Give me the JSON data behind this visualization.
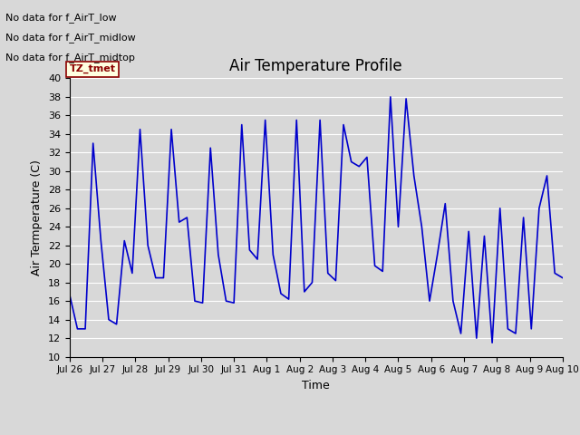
{
  "title": "Air Temperature Profile",
  "xlabel": "Time",
  "ylabel": "Air Termperature (C)",
  "ylim": [
    10,
    40
  ],
  "yticks": [
    10,
    12,
    14,
    16,
    18,
    20,
    22,
    24,
    26,
    28,
    30,
    32,
    34,
    36,
    38,
    40
  ],
  "line_color": "#0000cc",
  "background_color": "#d8d8d8",
  "plot_bg_color": "#d8d8d8",
  "grid_color": "#ffffff",
  "annotations": [
    "No data for f_AirT_low",
    "No data for f_AirT_midlow",
    "No data for f_AirT_midtop"
  ],
  "tz_label": "TZ_tmet",
  "x_labels": [
    "Jul 26",
    "Jul 27",
    "Jul 28",
    "Jul 29",
    "Jul 30",
    "Jul 31",
    "Aug 1",
    "Aug 2",
    "Aug 3",
    "Aug 4",
    "Aug 5",
    "Aug 6",
    "Aug 7",
    "Aug 8",
    "Aug 9",
    "Aug 10"
  ],
  "temp_data": [
    16.7,
    13.0,
    13.0,
    33.0,
    22.5,
    14.0,
    13.5,
    22.5,
    19.0,
    34.5,
    22.0,
    18.5,
    18.5,
    34.5,
    24.5,
    25.0,
    16.0,
    15.8,
    32.5,
    21.0,
    16.0,
    15.8,
    35.0,
    21.5,
    20.5,
    35.5,
    21.0,
    16.8,
    16.2,
    35.5,
    17.0,
    18.0,
    35.5,
    19.0,
    18.2,
    35.0,
    31.0,
    30.5,
    31.5,
    19.8,
    19.2,
    38.0,
    24.0,
    37.8,
    29.5,
    24.0,
    16.0,
    21.0,
    26.5,
    16.0,
    12.5,
    23.5,
    12.0,
    23.0,
    11.5,
    26.0,
    13.0,
    12.5,
    25.0,
    13.0,
    26.0,
    29.5,
    19.0,
    18.5
  ],
  "title_fontsize": 12,
  "axis_label_fontsize": 9,
  "tick_fontsize": 8,
  "legend_fontsize": 10,
  "annotation_fontsize": 8,
  "tz_fontsize": 8
}
